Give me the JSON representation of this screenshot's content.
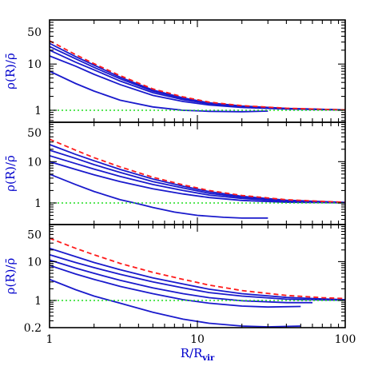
{
  "chart_data": {
    "type": "line",
    "xscale": "log",
    "yscale": "log",
    "xlim": [
      1,
      100
    ],
    "xlabel": "R/R",
    "xlabel_sub": "vir",
    "xticklabels": [
      "1",
      "10",
      "100"
    ],
    "ylabel": "ρ(R)/ρ̄",
    "panels": [
      {
        "ylim": [
          0.55,
          90
        ],
        "yticklabels": [
          "50",
          "10",
          "1"
        ],
        "series": [
          {
            "style": "blue",
            "x": [
              1,
              1.5,
              2,
              3,
              5,
              8,
              12,
              20,
              30
            ],
            "y": [
              7,
              3.8,
              2.6,
              1.65,
              1.18,
              1.0,
              0.95,
              0.93,
              0.96
            ]
          },
          {
            "style": "blue",
            "x": [
              1,
              1.5,
              2,
              3,
              5,
              8,
              12,
              20,
              40,
              70,
              100
            ],
            "y": [
              15,
              9,
              6,
              3.6,
              2.1,
              1.55,
              1.3,
              1.15,
              1.06,
              1.03,
              1.02
            ]
          },
          {
            "style": "blue",
            "x": [
              1,
              1.5,
              2,
              3,
              5,
              8,
              12,
              20,
              40,
              70,
              100
            ],
            "y": [
              20,
              11,
              7.5,
              4.3,
              2.4,
              1.7,
              1.38,
              1.2,
              1.08,
              1.04,
              1.02
            ]
          },
          {
            "style": "blue",
            "x": [
              1,
              1.5,
              2,
              3,
              5,
              8,
              12,
              20,
              40,
              70,
              100
            ],
            "y": [
              24,
              13,
              8.5,
              4.8,
              2.6,
              1.8,
              1.42,
              1.22,
              1.09,
              1.04,
              1.02
            ]
          },
          {
            "style": "blue",
            "x": [
              1,
              1.5,
              2,
              3,
              5,
              8,
              12,
              20,
              40,
              70,
              100
            ],
            "y": [
              28,
              14.5,
              9.5,
              5.2,
              2.75,
              1.85,
              1.45,
              1.24,
              1.1,
              1.05,
              1.02
            ]
          },
          {
            "style": "red",
            "x": [
              1,
              1.5,
              2,
              3,
              5,
              8,
              12,
              20,
              40,
              70,
              100
            ],
            "y": [
              32,
              16,
              10.2,
              5.6,
              2.9,
              1.95,
              1.5,
              1.26,
              1.11,
              1.05,
              1.02
            ]
          },
          {
            "style": "green",
            "x": [
              1,
              100
            ],
            "y": [
              1,
              1
            ]
          }
        ]
      },
      {
        "ylim": [
          0.3,
          90
        ],
        "yticklabels": [
          "50",
          "10",
          "1"
        ],
        "series": [
          {
            "style": "blue",
            "x": [
              1,
              1.5,
              2,
              3,
              4,
              5,
              7,
              10,
              15,
              20,
              30
            ],
            "y": [
              5,
              2.8,
              1.9,
              1.2,
              0.95,
              0.78,
              0.6,
              0.5,
              0.45,
              0.43,
              0.43
            ]
          },
          {
            "style": "blue",
            "x": [
              1,
              1.5,
              2,
              3,
              5,
              8,
              12,
              20,
              40,
              70,
              100
            ],
            "y": [
              10,
              6.5,
              4.8,
              3.3,
              2.2,
              1.65,
              1.35,
              1.15,
              1.04,
              1.02,
              1.01
            ]
          },
          {
            "style": "blue",
            "x": [
              1,
              1.5,
              2,
              3,
              5,
              8,
              12,
              20,
              40,
              70,
              100
            ],
            "y": [
              14,
              9,
              6.6,
              4.4,
              2.8,
              2.0,
              1.55,
              1.28,
              1.1,
              1.04,
              1.01
            ]
          },
          {
            "style": "blue",
            "x": [
              1,
              1.5,
              2,
              3,
              5,
              8,
              12,
              20,
              40,
              70,
              100
            ],
            "y": [
              19,
              12,
              8.5,
              5.5,
              3.3,
              2.3,
              1.72,
              1.37,
              1.14,
              1.06,
              1.02
            ]
          },
          {
            "style": "blue",
            "x": [
              1,
              1.5,
              2,
              3,
              5,
              8,
              12,
              20,
              40,
              70,
              100
            ],
            "y": [
              26,
              15,
              10.5,
              6.5,
              3.8,
              2.55,
              1.88,
              1.45,
              1.17,
              1.08,
              1.03
            ]
          },
          {
            "style": "red",
            "x": [
              1,
              1.5,
              2,
              3,
              5,
              8,
              12,
              20,
              40,
              70,
              100
            ],
            "y": [
              35,
              19,
              12.5,
              7.5,
              4.2,
              2.75,
              2.0,
              1.52,
              1.2,
              1.09,
              1.04
            ]
          },
          {
            "style": "green",
            "x": [
              1,
              100
            ],
            "y": [
              1,
              1
            ]
          }
        ]
      },
      {
        "ylim": [
          0.2,
          90
        ],
        "yticklabels": [
          "50",
          "10",
          "1",
          "0.2"
        ],
        "series": [
          {
            "style": "blue",
            "x": [
              1,
              1.5,
              2,
              3,
              5,
              8,
              12,
              20,
              30,
              50
            ],
            "y": [
              3.5,
              1.9,
              1.3,
              0.85,
              0.5,
              0.33,
              0.26,
              0.22,
              0.21,
              0.22
            ]
          },
          {
            "style": "blue",
            "x": [
              1,
              1.5,
              2,
              3,
              5,
              8,
              12,
              20,
              30,
              50
            ],
            "y": [
              8,
              4.8,
              3.5,
              2.3,
              1.5,
              1.05,
              0.85,
              0.72,
              0.68,
              0.7
            ]
          },
          {
            "style": "blue",
            "x": [
              1,
              1.5,
              2,
              3,
              5,
              8,
              12,
              20,
              40,
              60
            ],
            "y": [
              11,
              6.8,
              5.0,
              3.3,
              2.1,
              1.5,
              1.18,
              0.98,
              0.88,
              0.88
            ]
          },
          {
            "style": "blue",
            "x": [
              1,
              1.5,
              2,
              3,
              5,
              8,
              12,
              20,
              40,
              70,
              100
            ],
            "y": [
              15,
              9.5,
              7,
              4.7,
              3.0,
              2.1,
              1.6,
              1.3,
              1.08,
              1.03,
              1.02
            ]
          },
          {
            "style": "blue",
            "x": [
              1,
              1.5,
              2,
              3,
              5,
              8,
              12,
              20,
              40,
              70,
              100
            ],
            "y": [
              22,
              13.5,
              9.5,
              6.2,
              3.8,
              2.65,
              1.95,
              1.5,
              1.2,
              1.1,
              1.05
            ]
          },
          {
            "style": "red",
            "x": [
              1,
              1.5,
              2,
              3,
              5,
              8,
              12,
              20,
              40,
              70,
              100
            ],
            "y": [
              40,
              22,
              15,
              9,
              5.3,
              3.5,
              2.5,
              1.8,
              1.35,
              1.18,
              1.12
            ]
          },
          {
            "style": "green",
            "x": [
              1,
              100
            ],
            "y": [
              1,
              1
            ]
          }
        ]
      }
    ]
  }
}
